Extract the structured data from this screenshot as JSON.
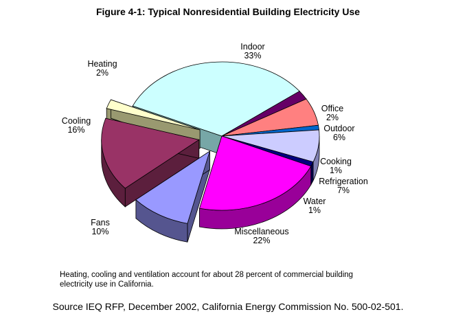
{
  "chart_data": {
    "type": "pie",
    "title": "Figure 4-1: Typical Nonresidential Building Electricity Use",
    "slices": [
      {
        "name": "Indoor",
        "label": "33%",
        "value": 33,
        "color": "#ccffff",
        "side": "#77a7a7"
      },
      {
        "name": "Office",
        "label": "2%",
        "value": 2,
        "color": "#660066",
        "side": "#3d003d"
      },
      {
        "name": "Outdoor",
        "label": "6%",
        "value": 6,
        "color": "#ff8080",
        "side": "#b35050"
      },
      {
        "name": "Cooking",
        "label": "1%",
        "value": 1,
        "color": "#0066cc",
        "side": "#003f80"
      },
      {
        "name": "Refrigeration",
        "label": "7%",
        "value": 7,
        "color": "#ccccff",
        "side": "#8080b3"
      },
      {
        "name": "Water",
        "label": "1%",
        "value": 1,
        "color": "#000080",
        "side": "#000050"
      },
      {
        "name": "Miscellaneous",
        "label": "22%",
        "value": 22,
        "color": "#ff00ff",
        "side": "#990099"
      },
      {
        "name": "Fans",
        "label": "10%",
        "value": 10,
        "color": "#9999ff",
        "side": "#55558f"
      },
      {
        "name": "Cooling",
        "label": "16%",
        "value": 16,
        "color": "#993366",
        "side": "#5c1f3d"
      },
      {
        "name": "Heating",
        "label": "2%",
        "value": 2,
        "color": "#ffffcc",
        "side": "#999970"
      }
    ],
    "exploded": [
      "Fans",
      "Cooling",
      "Heating"
    ]
  },
  "caption": "Heating, cooling and ventilation account for about 28 percent of commercial building electricity use in California.",
  "source": "Source IEQ RFP, December 2002, California Energy Commission No. 500-02-501."
}
